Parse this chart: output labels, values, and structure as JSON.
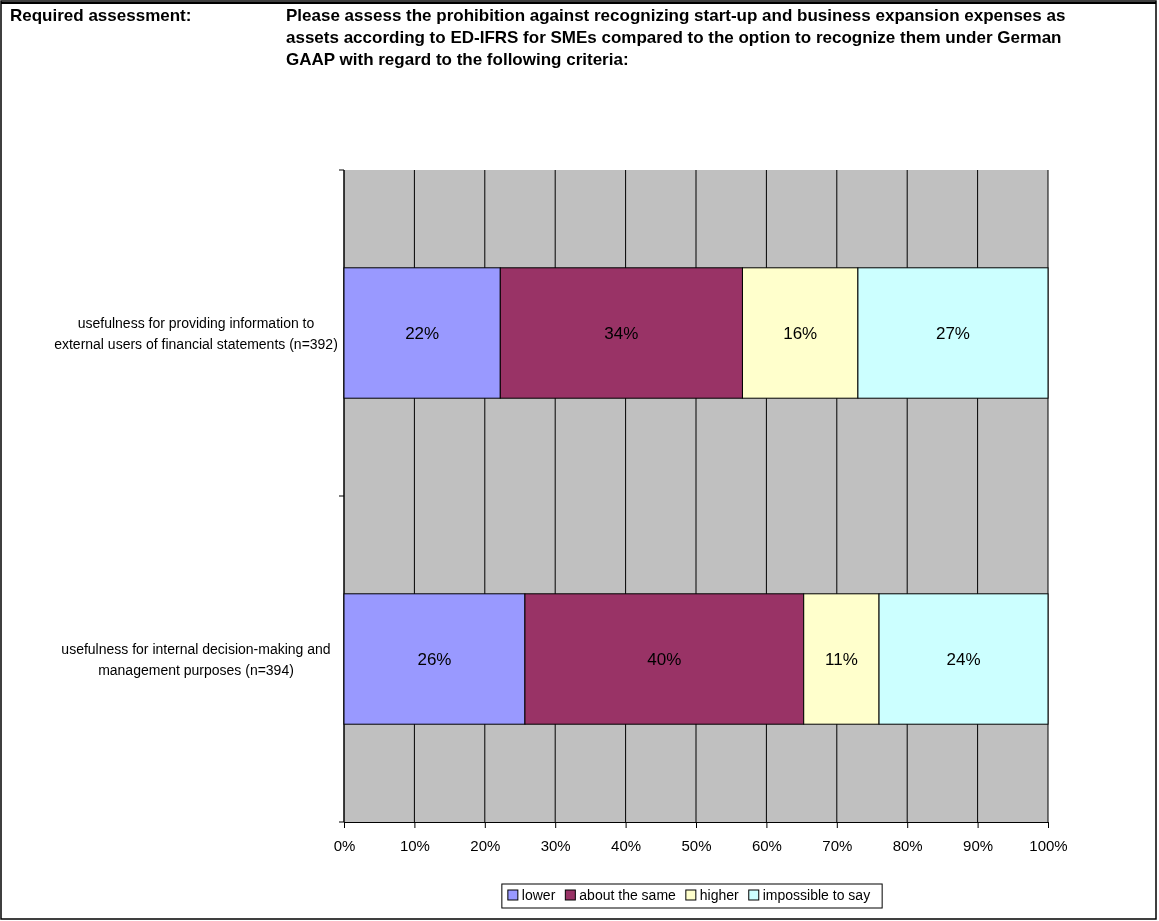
{
  "chart_data": {
    "type": "bar",
    "orientation": "horizontal",
    "stacked": true,
    "title": "Please assess the prohibition against recognizing start-up and business expansion expenses as assets according to ED-IFRS for SMEs compared to the option to recognize them under German GAAP with regard to the following criteria:",
    "annotations": [
      "Required assessment:"
    ],
    "categories": [
      "usefulness for providing information to external users of financial statements (n=392)",
      "usefulness for internal decision-making and management purposes (n=394)"
    ],
    "series": [
      {
        "name": "lower",
        "color": "#9999ff",
        "values": [
          22.2,
          25.7
        ],
        "value_labels": [
          "22%",
          "26%"
        ]
      },
      {
        "name": "about the same",
        "color": "#993366",
        "values": [
          34.4,
          39.6
        ],
        "value_labels": [
          "34%",
          "40%"
        ]
      },
      {
        "name": "higher",
        "color": "#ffffcc",
        "values": [
          16.4,
          10.7
        ],
        "value_labels": [
          "16%",
          "11%"
        ]
      },
      {
        "name": "impossible to say",
        "color": "#ccffff",
        "values": [
          27.0,
          24.0
        ],
        "value_labels": [
          "27%",
          "24%"
        ]
      }
    ],
    "xlim": [
      0,
      100
    ],
    "xticks": [
      {
        "value": 0,
        "label": "0%"
      },
      {
        "value": 10,
        "label": "10%"
      },
      {
        "value": 20,
        "label": "20%"
      },
      {
        "value": 30,
        "label": "30%"
      },
      {
        "value": 40,
        "label": "40%"
      },
      {
        "value": 50,
        "label": "50%"
      },
      {
        "value": 60,
        "label": "60%"
      },
      {
        "value": 70,
        "label": "70%"
      },
      {
        "value": 80,
        "label": "80%"
      },
      {
        "value": 90,
        "label": "90%"
      },
      {
        "value": 100,
        "label": "100%"
      }
    ],
    "grid": "x",
    "legend": "bottom"
  }
}
